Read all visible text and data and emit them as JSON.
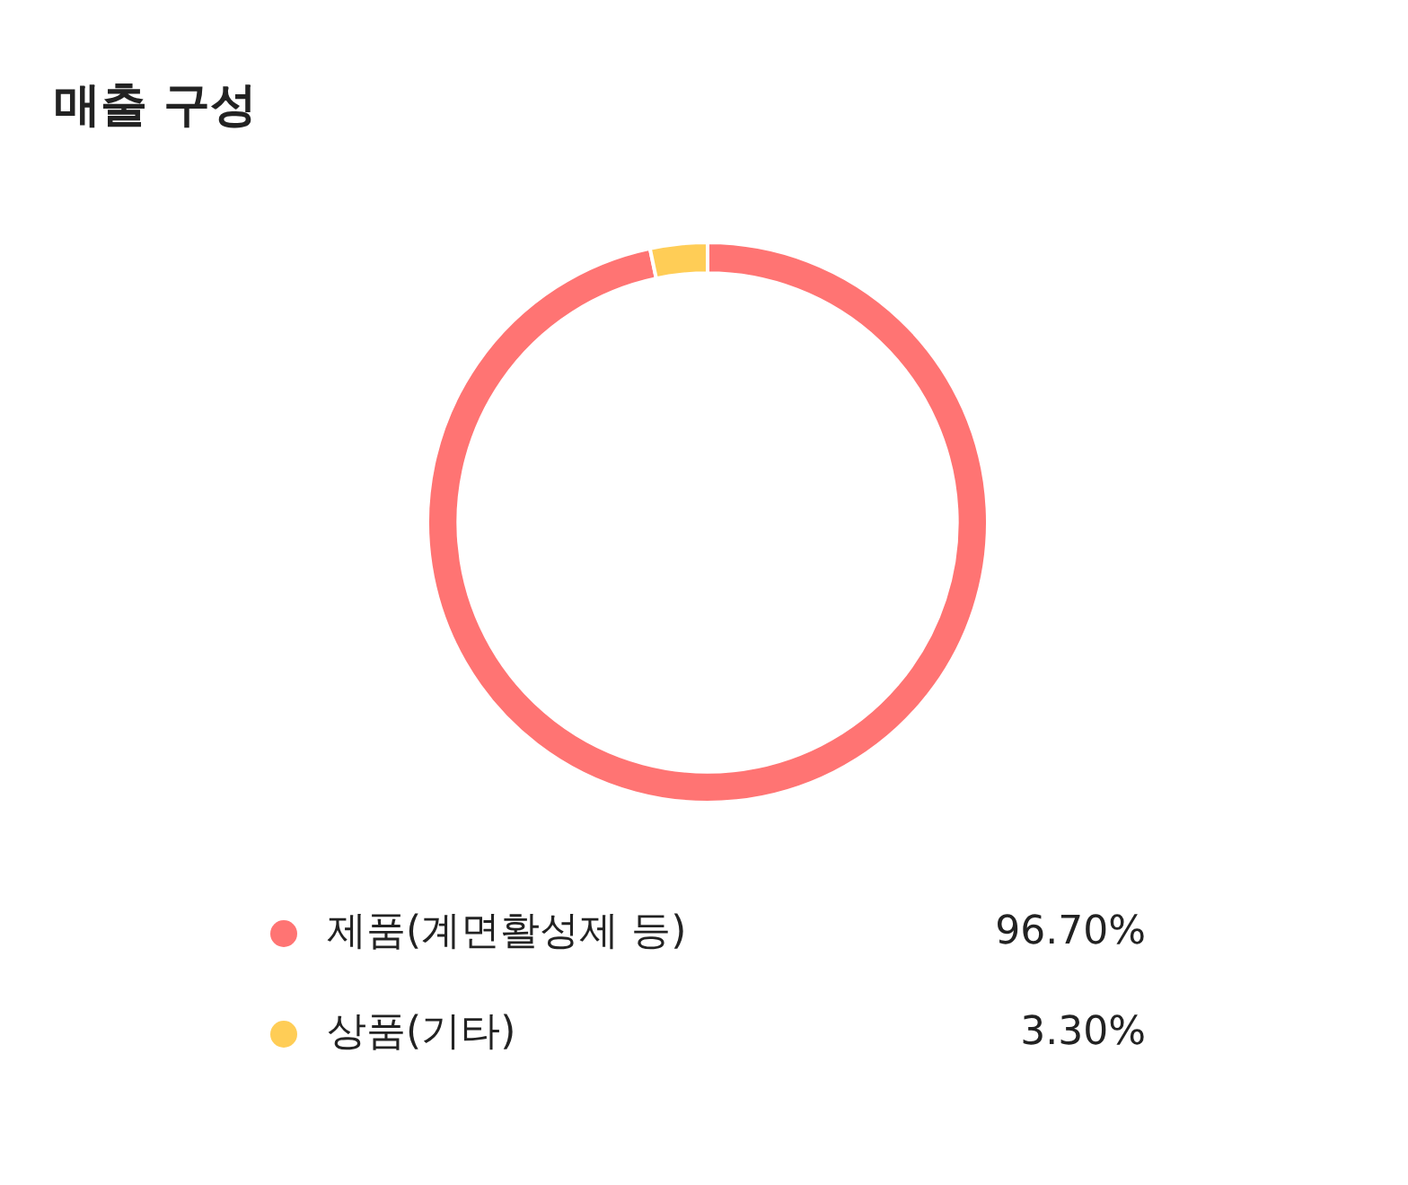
{
  "chart_data": {
    "type": "donut",
    "title": "매출 구성",
    "categories": [
      "제품(계면활성제 등)",
      "상품(기타)"
    ],
    "values": [
      96.7,
      3.3
    ],
    "colors": [
      "#ff7473",
      "#ffcd56"
    ],
    "value_labels": [
      "96.70%",
      "3.30%"
    ],
    "legend": "bottom"
  }
}
